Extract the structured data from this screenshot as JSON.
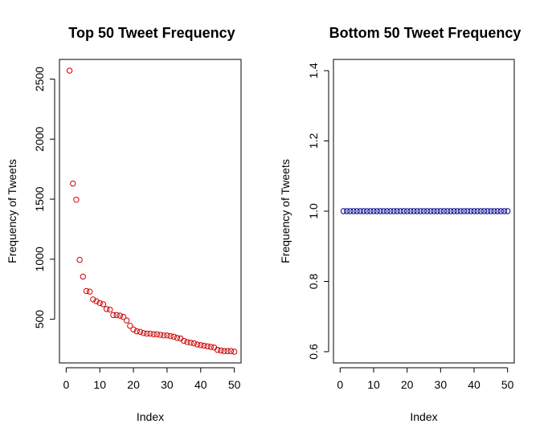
{
  "chart_data": [
    {
      "type": "scatter",
      "title": "Top 50 Tweet Frequency",
      "xlabel": "Index",
      "ylabel": "Frequency of Tweets",
      "xlim": [
        0,
        50
      ],
      "ylim": [
        230,
        2570
      ],
      "xticks": [
        0,
        10,
        20,
        30,
        40,
        50
      ],
      "yticks": [
        500,
        1000,
        1500,
        2000,
        2500
      ],
      "grid": false,
      "point_color": "#cc0000",
      "x": [
        1,
        2,
        3,
        4,
        5,
        6,
        7,
        8,
        9,
        10,
        11,
        12,
        13,
        14,
        15,
        16,
        17,
        18,
        19,
        20,
        21,
        22,
        23,
        24,
        25,
        26,
        27,
        28,
        29,
        30,
        31,
        32,
        33,
        34,
        35,
        36,
        37,
        38,
        39,
        40,
        41,
        42,
        43,
        44,
        45,
        46,
        47,
        48,
        49,
        50
      ],
      "y": [
        2570,
        1630,
        1495,
        995,
        855,
        735,
        730,
        665,
        650,
        635,
        625,
        585,
        580,
        535,
        535,
        530,
        520,
        490,
        445,
        415,
        400,
        395,
        385,
        380,
        380,
        375,
        375,
        370,
        365,
        365,
        360,
        355,
        345,
        340,
        320,
        310,
        305,
        300,
        290,
        285,
        280,
        275,
        270,
        265,
        245,
        240,
        235,
        235,
        235,
        230
      ]
    },
    {
      "type": "scatter",
      "title": "Bottom 50 Tweet Frequency",
      "xlabel": "Index",
      "ylabel": "Frequency of Tweets",
      "xlim": [
        0,
        50
      ],
      "ylim": [
        0.6,
        1.4
      ],
      "xticks": [
        0,
        10,
        20,
        30,
        40,
        50
      ],
      "yticks": [
        0.6,
        0.8,
        1.0,
        1.2,
        1.4
      ],
      "ytick_labels": [
        "0.6",
        "0.8",
        "1.0",
        "1.2",
        "1.4"
      ],
      "grid": false,
      "point_color": "#00008b",
      "x": [
        1,
        2,
        3,
        4,
        5,
        6,
        7,
        8,
        9,
        10,
        11,
        12,
        13,
        14,
        15,
        16,
        17,
        18,
        19,
        20,
        21,
        22,
        23,
        24,
        25,
        26,
        27,
        28,
        29,
        30,
        31,
        32,
        33,
        34,
        35,
        36,
        37,
        38,
        39,
        40,
        41,
        42,
        43,
        44,
        45,
        46,
        47,
        48,
        49,
        50
      ],
      "y": [
        1,
        1,
        1,
        1,
        1,
        1,
        1,
        1,
        1,
        1,
        1,
        1,
        1,
        1,
        1,
        1,
        1,
        1,
        1,
        1,
        1,
        1,
        1,
        1,
        1,
        1,
        1,
        1,
        1,
        1,
        1,
        1,
        1,
        1,
        1,
        1,
        1,
        1,
        1,
        1,
        1,
        1,
        1,
        1,
        1,
        1,
        1,
        1,
        1,
        1
      ]
    }
  ]
}
